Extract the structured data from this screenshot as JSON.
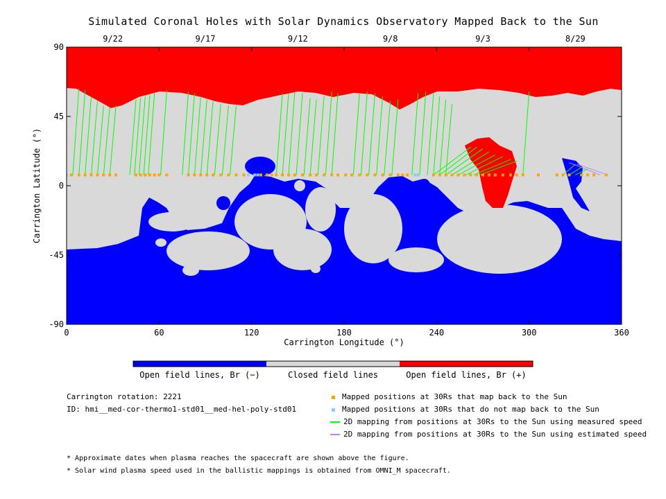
{
  "chart_data": {
    "type": "map",
    "title": "Simulated Coronal Holes with Solar Dynamics Observatory Mapped Back to the Sun",
    "xlabel": "Carrington Longitude (°)",
    "ylabel": "Carrington Latitude (°)",
    "xlim": [
      0,
      360
    ],
    "ylim": [
      -90,
      90
    ],
    "x_ticks": [
      0,
      60,
      120,
      180,
      240,
      300,
      360
    ],
    "y_ticks": [
      -90,
      -45,
      0,
      45,
      90
    ],
    "top_dates": [
      {
        "label": "9/22",
        "lon": 30
      },
      {
        "label": "9/17",
        "lon": 90
      },
      {
        "label": "9/12",
        "lon": 150
      },
      {
        "label": "9/8",
        "lon": 210
      },
      {
        "label": "9/3",
        "lon": 270
      },
      {
        "label": "8/29",
        "lon": 330
      }
    ],
    "colorbar": [
      {
        "label": "Open field lines, Br (−)",
        "color": "#0000ff"
      },
      {
        "label": "Closed field lines",
        "color": "#d9d9d9"
      },
      {
        "label": "Open field lines, Br (+)",
        "color": "#ff0000"
      }
    ],
    "mapped_latitude": 7,
    "mapped_back_lons": [
      3,
      8,
      12,
      16,
      20,
      24,
      28,
      32,
      45,
      48,
      51,
      54,
      57,
      60,
      65,
      79,
      83,
      87,
      91,
      95,
      100,
      105,
      110,
      115,
      126,
      130,
      133,
      136,
      140,
      144,
      148,
      153,
      158,
      162,
      167,
      172,
      176,
      181,
      185,
      190,
      195,
      200,
      205,
      210,
      215,
      218,
      221,
      238,
      242,
      246,
      250,
      254,
      258,
      262,
      266,
      270,
      274,
      278,
      283,
      288,
      292,
      296,
      306,
      318,
      322,
      326,
      334,
      338,
      342,
      350
    ],
    "not_mapped_lons": [
      0,
      118,
      122,
      124,
      226,
      228
    ],
    "green_traces": [
      {
        "lon": 8,
        "lat": 63
      },
      {
        "lon": 12,
        "lat": 62
      },
      {
        "lon": 16,
        "lat": 58
      },
      {
        "lon": 20,
        "lat": 55
      },
      {
        "lon": 24,
        "lat": 52
      },
      {
        "lon": 28,
        "lat": 51
      },
      {
        "lon": 32,
        "lat": 52
      },
      {
        "lon": 45,
        "lat": 56
      },
      {
        "lon": 48,
        "lat": 57
      },
      {
        "lon": 51,
        "lat": 58
      },
      {
        "lon": 54,
        "lat": 59
      },
      {
        "lon": 57,
        "lat": 60
      },
      {
        "lon": 65,
        "lat": 62
      },
      {
        "lon": 79,
        "lat": 61
      },
      {
        "lon": 83,
        "lat": 60
      },
      {
        "lon": 87,
        "lat": 58
      },
      {
        "lon": 91,
        "lat": 56
      },
      {
        "lon": 95,
        "lat": 55
      },
      {
        "lon": 100,
        "lat": 53
      },
      {
        "lon": 105,
        "lat": 52
      },
      {
        "lon": 110,
        "lat": 52
      },
      {
        "lon": 140,
        "lat": 60
      },
      {
        "lon": 144,
        "lat": 60
      },
      {
        "lon": 148,
        "lat": 61
      },
      {
        "lon": 153,
        "lat": 60
      },
      {
        "lon": 158,
        "lat": 57
      },
      {
        "lon": 162,
        "lat": 56
      },
      {
        "lon": 167,
        "lat": 58
      },
      {
        "lon": 172,
        "lat": 61
      },
      {
        "lon": 176,
        "lat": 60
      },
      {
        "lon": 190,
        "lat": 60
      },
      {
        "lon": 195,
        "lat": 61
      },
      {
        "lon": 200,
        "lat": 60
      },
      {
        "lon": 205,
        "lat": 58
      },
      {
        "lon": 210,
        "lat": 55
      },
      {
        "lon": 215,
        "lat": 56
      },
      {
        "lon": 228,
        "lat": 60
      },
      {
        "lon": 233,
        "lat": 61
      },
      {
        "lon": 238,
        "lat": 60
      },
      {
        "lon": 242,
        "lat": 58
      },
      {
        "lon": 246,
        "lat": 56
      },
      {
        "lon": 250,
        "lat": 53
      },
      {
        "lon": 262,
        "lat": 25
      },
      {
        "lon": 266,
        "lat": 25
      },
      {
        "lon": 270,
        "lat": 24
      },
      {
        "lon": 274,
        "lat": 22
      },
      {
        "lon": 278,
        "lat": 20
      },
      {
        "lon": 283,
        "lat": 19
      },
      {
        "lon": 288,
        "lat": 17
      },
      {
        "lon": 292,
        "lat": 16
      },
      {
        "lon": 300,
        "lat": 61
      },
      {
        "lon": 330,
        "lat": 14
      },
      {
        "lon": 334,
        "lat": 12
      },
      {
        "lon": 338,
        "lat": 11
      }
    ],
    "purple_traces": [
      {
        "lon": 340,
        "lat": 10
      },
      {
        "lon": 345,
        "lat": 9
      }
    ],
    "info": {
      "rotation": "Carrington rotation: 2221",
      "id": "ID: hmi__med-cor-thermo1-std01__med-hel-poly-std01"
    },
    "legend": [
      {
        "label": "Mapped positions at 30Rs that map back to the Sun",
        "color": "#ffa500",
        "kind": "square"
      },
      {
        "label": "Mapped positions at 30Rs that do not map back to the Sun",
        "color": "#87cefa",
        "kind": "square"
      },
      {
        "label": "2D mapping from positions at 30Rs to the Sun using measured speed",
        "color": "#00ff00",
        "kind": "line"
      },
      {
        "label": "2D mapping from positions at 30Rs to the Sun using estimated speed",
        "color": "#bf80ff",
        "kind": "line"
      }
    ],
    "notes": [
      "* Approximate dates when plasma reaches the spacecraft are shown above the figure.",
      "* Solar wind plasma speed used in the ballistic mappings is obtained from OMNI_M spacecraft."
    ]
  }
}
